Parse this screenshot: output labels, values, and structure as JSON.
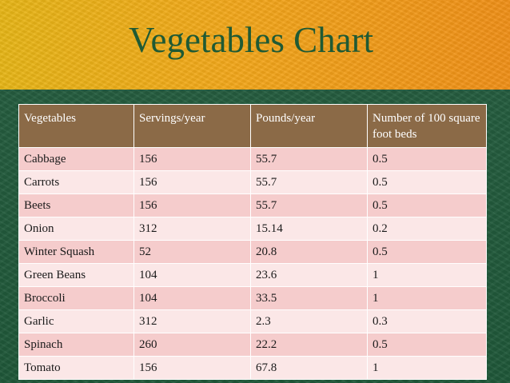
{
  "slide": {
    "title": "Vegetables Chart"
  },
  "table": {
    "headers": [
      "Vegetables",
      "Servings/year",
      "Pounds/year",
      "Number of 100 square foot beds"
    ],
    "rows": [
      [
        "Cabbage",
        "156",
        "55.7",
        "0.5"
      ],
      [
        "Carrots",
        "156",
        "55.7",
        "0.5"
      ],
      [
        "Beets",
        "156",
        "55.7",
        "0.5"
      ],
      [
        "Onion",
        "312",
        "15.14",
        "0.2"
      ],
      [
        "Winter Squash",
        "52",
        "20.8",
        "0.5"
      ],
      [
        "Green Beans",
        "104",
        "23.6",
        "1"
      ],
      [
        "Broccoli",
        "104",
        "33.5",
        "1"
      ],
      [
        "Garlic",
        "312",
        "2.3",
        "0.3"
      ],
      [
        "Spinach",
        "260",
        "22.2",
        "0.5"
      ],
      [
        "Tomato",
        "156",
        "67.8",
        "1"
      ]
    ]
  },
  "colors": {
    "header_band": "#f2a71a",
    "body_band": "#255d3f",
    "title_text": "#1f5a34",
    "table_header": "#8b6a47",
    "row_odd": "#f5cccc",
    "row_even": "#fbe7e7"
  }
}
